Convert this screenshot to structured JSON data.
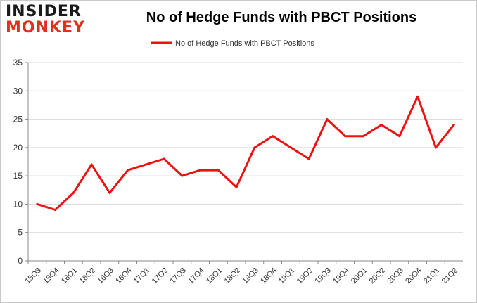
{
  "logo": {
    "line1": "INSIDER",
    "line2": "MONKEY"
  },
  "chart_data": {
    "type": "line",
    "title": "No of Hedge Funds with PBCT Positions",
    "xlabel": "",
    "ylabel": "",
    "categories": [
      "15Q3",
      "15Q4",
      "16Q1",
      "16Q2",
      "16Q3",
      "16Q4",
      "17Q1",
      "17Q2",
      "17Q3",
      "17Q4",
      "18Q1",
      "18Q2",
      "18Q3",
      "18Q4",
      "19Q1",
      "19Q2",
      "19Q3",
      "19Q4",
      "20Q1",
      "20Q2",
      "20Q3",
      "20Q4",
      "21Q1",
      "21Q2"
    ],
    "series": [
      {
        "name": "No of Hedge Funds with PBCT Positions",
        "values": [
          10,
          9,
          12,
          17,
          12,
          16,
          17,
          18,
          15,
          16,
          16,
          13,
          20,
          22,
          20,
          18,
          25,
          22,
          22,
          24,
          22,
          29,
          20,
          24
        ],
        "color": "#ee1111"
      }
    ],
    "ylim": [
      0,
      35
    ],
    "yticks": [
      0,
      5,
      10,
      15,
      20,
      25,
      30,
      35
    ],
    "grid": true,
    "legend": "top-center"
  }
}
